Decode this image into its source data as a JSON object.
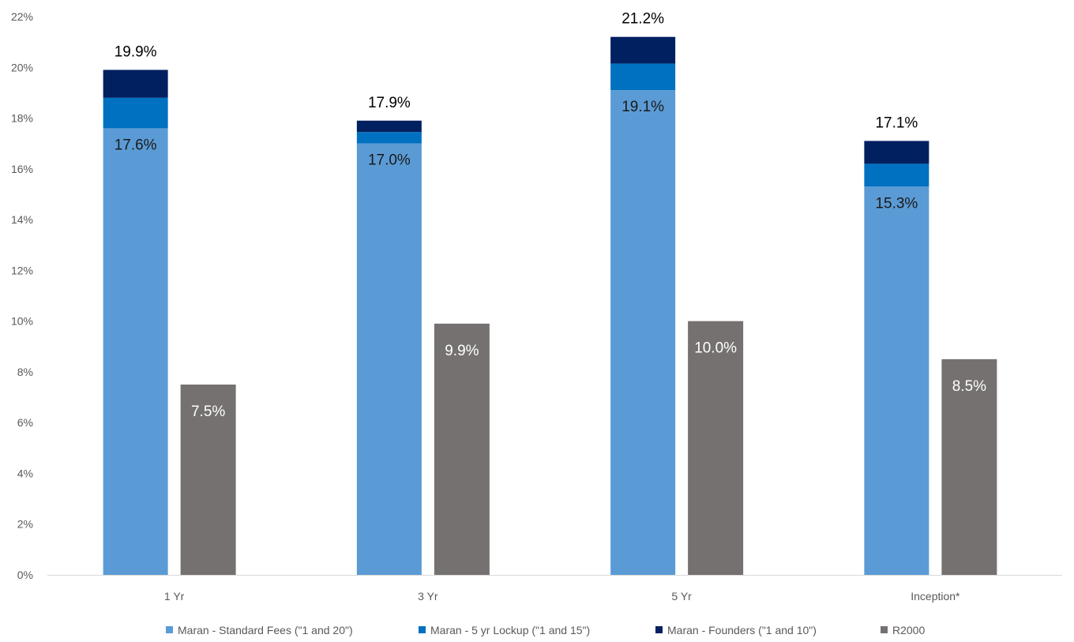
{
  "chart_data": {
    "type": "bar",
    "stacked_group": true,
    "categories": [
      "1 Yr",
      "3 Yr",
      "5 Yr",
      "Inception*"
    ],
    "ylim": [
      0,
      22
    ],
    "yticks": [
      "0%",
      "2%",
      "4%",
      "6%",
      "8%",
      "10%",
      "12%",
      "14%",
      "16%",
      "18%",
      "20%",
      "22%"
    ],
    "series": [
      {
        "name": "Maran - Standard Fees (\"1 and 20\")",
        "color": "#5B9BD5",
        "stack": "maran",
        "values": [
          17.6,
          17.0,
          19.1,
          15.3
        ],
        "labels": [
          "17.6%",
          "17.0%",
          "19.1%",
          "15.3%"
        ]
      },
      {
        "name": "Maran - 5 yr Lockup (\"1 and 15\")",
        "color": "#0070C0",
        "stack": "maran",
        "values": [
          1.2,
          0.45,
          1.05,
          0.9
        ]
      },
      {
        "name": "Maran - Founders (\"1 and 10\")",
        "color": "#002060",
        "stack": "maran",
        "values": [
          1.1,
          0.45,
          1.05,
          0.9
        ]
      },
      {
        "name": "R2000",
        "color": "#767171",
        "stack": "r2000",
        "values": [
          7.5,
          9.9,
          10.0,
          8.5
        ],
        "labels": [
          "7.5%",
          "9.9%",
          "10.0%",
          "8.5%"
        ]
      }
    ],
    "stack_totals": {
      "values": [
        19.9,
        17.9,
        21.2,
        17.1
      ],
      "labels": [
        "19.9%",
        "17.9%",
        "21.2%",
        "17.1%"
      ]
    },
    "legend": "bottom",
    "grid": false
  }
}
